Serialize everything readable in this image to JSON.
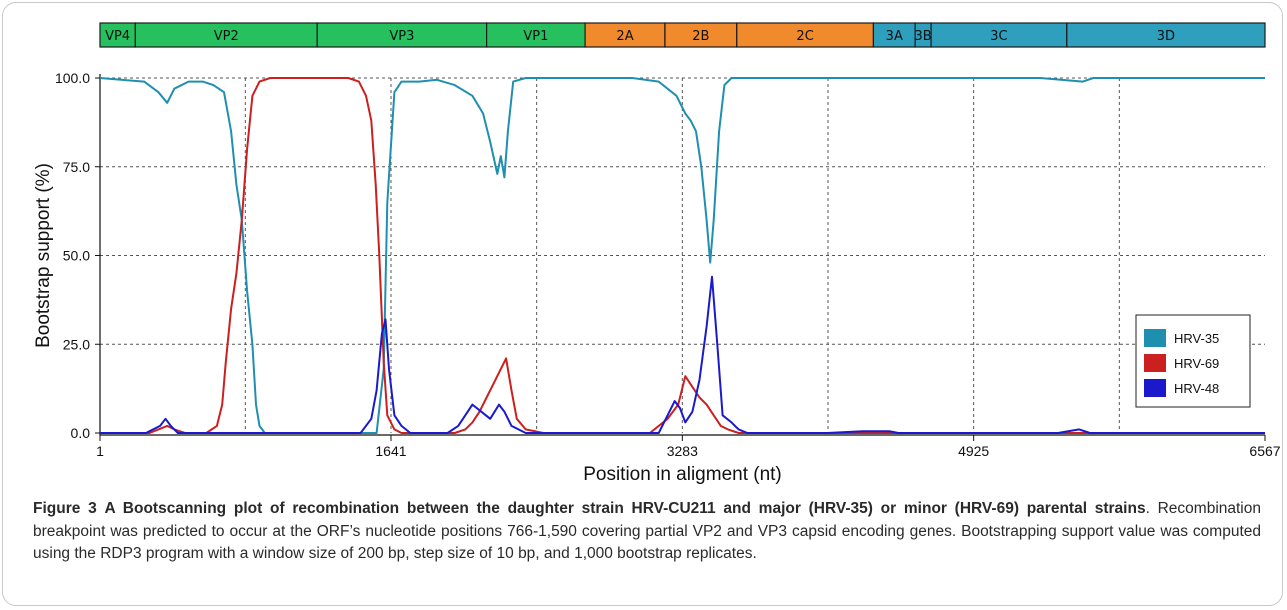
{
  "chart_data": {
    "type": "line",
    "xlabel": "Position in aligment (nt)",
    "ylabel": "Bootstrap support (%)",
    "xlim": [
      1,
      6567
    ],
    "ylim": [
      0,
      100
    ],
    "xticks": [
      1,
      1641,
      3283,
      4925,
      6567
    ],
    "xtick_labels": [
      "1",
      "1641",
      "3283",
      "4925",
      "6567"
    ],
    "yticks": [
      0,
      25,
      50,
      75,
      100
    ],
    "ytick_labels": [
      "0.0",
      "25.0",
      "50.0",
      "75.0",
      "100.0"
    ],
    "vgrid": [
      820,
      1641,
      2462,
      3283,
      4104,
      4925,
      5746
    ],
    "grid": true,
    "legend_position": "right",
    "genome_regions": [
      {
        "name": "VP4",
        "start": 1,
        "end": 200,
        "color": "#27c05f"
      },
      {
        "name": "VP2",
        "start": 200,
        "end": 1225,
        "color": "#27c05f"
      },
      {
        "name": "VP3",
        "start": 1225,
        "end": 2180,
        "color": "#27c05f"
      },
      {
        "name": "VP1",
        "start": 2180,
        "end": 2735,
        "color": "#27c05f"
      },
      {
        "name": "2A",
        "start": 2735,
        "end": 3185,
        "color": "#f08a2c"
      },
      {
        "name": "2B",
        "start": 3185,
        "end": 3590,
        "color": "#f08a2c"
      },
      {
        "name": "2C",
        "start": 3590,
        "end": 4360,
        "color": "#f08a2c"
      },
      {
        "name": "3A",
        "start": 4360,
        "end": 4595,
        "color": "#2e9fbd"
      },
      {
        "name": "3B",
        "start": 4595,
        "end": 4685,
        "color": "#2e9fbd"
      },
      {
        "name": "3C",
        "start": 4685,
        "end": 5450,
        "color": "#2e9fbd"
      },
      {
        "name": "3D",
        "start": 5450,
        "end": 6567,
        "color": "#2e9fbd"
      }
    ],
    "series": [
      {
        "name": "HRV-35",
        "color": "#1f8fb0",
        "points": [
          [
            1,
            100
          ],
          [
            120,
            99.5
          ],
          [
            250,
            99
          ],
          [
            330,
            96
          ],
          [
            380,
            93
          ],
          [
            420,
            97
          ],
          [
            500,
            99
          ],
          [
            580,
            99
          ],
          [
            640,
            98
          ],
          [
            700,
            96
          ],
          [
            740,
            85
          ],
          [
            770,
            70
          ],
          [
            800,
            60
          ],
          [
            830,
            40
          ],
          [
            860,
            25
          ],
          [
            880,
            8
          ],
          [
            900,
            2
          ],
          [
            930,
            0
          ],
          [
            1000,
            0
          ],
          [
            1560,
            0
          ],
          [
            1600,
            18
          ],
          [
            1620,
            65
          ],
          [
            1660,
            96
          ],
          [
            1700,
            99
          ],
          [
            1800,
            99
          ],
          [
            1900,
            99.5
          ],
          [
            2000,
            98
          ],
          [
            2100,
            95
          ],
          [
            2160,
            90
          ],
          [
            2200,
            82
          ],
          [
            2240,
            73
          ],
          [
            2260,
            78
          ],
          [
            2280,
            72
          ],
          [
            2300,
            85
          ],
          [
            2330,
            99
          ],
          [
            2400,
            100
          ],
          [
            2600,
            100
          ],
          [
            2800,
            100
          ],
          [
            3000,
            100
          ],
          [
            3150,
            99
          ],
          [
            3250,
            95
          ],
          [
            3300,
            90
          ],
          [
            3330,
            88
          ],
          [
            3360,
            85
          ],
          [
            3390,
            75
          ],
          [
            3420,
            60
          ],
          [
            3440,
            48
          ],
          [
            3460,
            60
          ],
          [
            3490,
            85
          ],
          [
            3520,
            98
          ],
          [
            3560,
            100
          ],
          [
            3800,
            100
          ],
          [
            4200,
            100
          ],
          [
            4700,
            100
          ],
          [
            5300,
            100
          ],
          [
            5540,
            99
          ],
          [
            5600,
            100
          ],
          [
            6000,
            100
          ],
          [
            6567,
            100
          ]
        ]
      },
      {
        "name": "HRV-69",
        "color": "#cc1f1f",
        "points": [
          [
            1,
            0
          ],
          [
            280,
            0
          ],
          [
            330,
            1
          ],
          [
            380,
            2
          ],
          [
            420,
            1
          ],
          [
            480,
            0
          ],
          [
            560,
            0
          ],
          [
            600,
            0
          ],
          [
            660,
            2
          ],
          [
            690,
            8
          ],
          [
            710,
            20
          ],
          [
            740,
            35
          ],
          [
            770,
            45
          ],
          [
            800,
            60
          ],
          [
            830,
            80
          ],
          [
            860,
            95
          ],
          [
            900,
            99
          ],
          [
            960,
            100
          ],
          [
            1400,
            100
          ],
          [
            1460,
            99
          ],
          [
            1500,
            95
          ],
          [
            1530,
            88
          ],
          [
            1555,
            70
          ],
          [
            1575,
            50
          ],
          [
            1600,
            20
          ],
          [
            1620,
            5
          ],
          [
            1660,
            1
          ],
          [
            1700,
            0
          ],
          [
            2000,
            0
          ],
          [
            2060,
            1
          ],
          [
            2100,
            3
          ],
          [
            2140,
            6
          ],
          [
            2180,
            10
          ],
          [
            2220,
            14
          ],
          [
            2260,
            18
          ],
          [
            2290,
            21
          ],
          [
            2320,
            12
          ],
          [
            2350,
            4
          ],
          [
            2400,
            1
          ],
          [
            2500,
            0
          ],
          [
            3100,
            0
          ],
          [
            3200,
            4
          ],
          [
            3260,
            8
          ],
          [
            3300,
            16
          ],
          [
            3340,
            13
          ],
          [
            3380,
            10
          ],
          [
            3420,
            8
          ],
          [
            3460,
            5
          ],
          [
            3500,
            2
          ],
          [
            3540,
            1
          ],
          [
            3600,
            0
          ],
          [
            4600,
            0
          ],
          [
            5500,
            0
          ],
          [
            6567,
            0
          ]
        ]
      },
      {
        "name": "HRV-48",
        "color": "#1a1acc",
        "points": [
          [
            1,
            0
          ],
          [
            260,
            0
          ],
          [
            300,
            1
          ],
          [
            340,
            2
          ],
          [
            370,
            4
          ],
          [
            400,
            2
          ],
          [
            440,
            0
          ],
          [
            1470,
            0
          ],
          [
            1530,
            4
          ],
          [
            1560,
            12
          ],
          [
            1590,
            28
          ],
          [
            1610,
            32
          ],
          [
            1630,
            18
          ],
          [
            1660,
            5
          ],
          [
            1700,
            2
          ],
          [
            1750,
            0
          ],
          [
            1960,
            0
          ],
          [
            2020,
            2
          ],
          [
            2060,
            5
          ],
          [
            2100,
            8
          ],
          [
            2150,
            6
          ],
          [
            2200,
            4
          ],
          [
            2250,
            8
          ],
          [
            2280,
            6
          ],
          [
            2320,
            2
          ],
          [
            2400,
            0
          ],
          [
            3150,
            0
          ],
          [
            3200,
            5
          ],
          [
            3240,
            9
          ],
          [
            3270,
            7
          ],
          [
            3300,
            3
          ],
          [
            3340,
            6
          ],
          [
            3380,
            15
          ],
          [
            3420,
            30
          ],
          [
            3450,
            44
          ],
          [
            3480,
            25
          ],
          [
            3510,
            5
          ],
          [
            3560,
            3
          ],
          [
            3600,
            1
          ],
          [
            3650,
            0
          ],
          [
            4100,
            0
          ],
          [
            4300,
            0.5
          ],
          [
            4450,
            0.5
          ],
          [
            4500,
            0
          ],
          [
            5400,
            0
          ],
          [
            5520,
            1
          ],
          [
            5580,
            0
          ],
          [
            6567,
            0
          ]
        ]
      }
    ]
  },
  "caption": {
    "label": "Figure 3",
    "title": "A Bootscanning plot of recombination between the daughter strain HRV-CU211 and major (HRV-35) or minor (HRV-69) parental strains",
    "punct": ".",
    "body": " Recombination breakpoint was predicted to occur at the ORF’s nucleotide positions 766-1,590 covering partial VP2 and VP3 capsid encoding genes. Bootstrapping support value was computed using the RDP3 program with a window size of 200 bp, step size of 10 bp, and 1,000 bootstrap replicates."
  }
}
